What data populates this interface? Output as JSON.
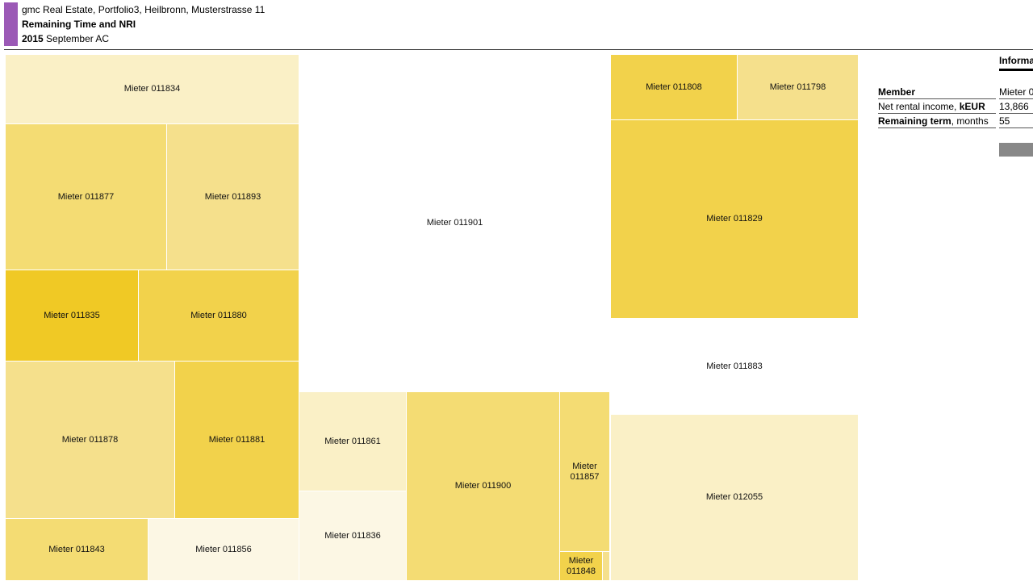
{
  "header": {
    "line1": "gmc Real Estate, Portfolio3, Heilbronn, Musterstrasse 11",
    "line2": "Remaining Time and NRI",
    "year": "2015",
    "period": " September AC"
  },
  "colors": {
    "accent": "#9b59b6",
    "tile_scale": [
      "#fcf7e4",
      "#faf0c6",
      "#f5e08c",
      "#f4dc73",
      "#f2d24b",
      "#f0c925"
    ]
  },
  "chart_data": {
    "type": "treemap",
    "title": "Remaining Time and NRI",
    "tiles": [
      {
        "label": "Mieter 011834",
        "color": "#faf0c6"
      },
      {
        "label": "Mieter 011877",
        "color": "#f4dc73"
      },
      {
        "label": "Mieter 011893",
        "color": "#f5e08c"
      },
      {
        "label": "Mieter 011835",
        "color": "#f0c925"
      },
      {
        "label": "Mieter 011880",
        "color": "#f2d24b"
      },
      {
        "label": "Mieter 011878",
        "color": "#f5e08c"
      },
      {
        "label": "Mieter 011881",
        "color": "#f2d24b"
      },
      {
        "label": "Mieter 011843",
        "color": "#f4dc73"
      },
      {
        "label": "Mieter 011856",
        "color": "#fcf7e4"
      },
      {
        "label": "Mieter 011901",
        "color": "#ffffff"
      },
      {
        "label": "Mieter 011861",
        "color": "#faf0c6"
      },
      {
        "label": "Mieter 011836",
        "color": "#fcf7e4"
      },
      {
        "label": "Mieter 011900",
        "color": "#f4dc73"
      },
      {
        "label": "Mieter 011857",
        "color": "#f4dc73"
      },
      {
        "label": "Mieter 011848",
        "color": "#f2d24b"
      },
      {
        "label": "",
        "color": "#f5e08c"
      },
      {
        "label": "Mieter 011808",
        "color": "#f2d24b"
      },
      {
        "label": "Mieter 011798",
        "color": "#f5e08c"
      },
      {
        "label": "Mieter 011829",
        "color": "#f2d24b"
      },
      {
        "label": "Mieter 011883",
        "color": "#ffffff"
      },
      {
        "label": "Mieter 012055",
        "color": "#faf0c6"
      }
    ]
  },
  "info_panel": {
    "title": "Informa",
    "rows": [
      {
        "label": "Member",
        "value": "Mieter 0"
      },
      {
        "label_plain": "Net rental income, ",
        "label_bold": "kEUR",
        "value": "13,866"
      },
      {
        "label_bold": "Remaining term",
        "label_plain": ", months",
        "value": "55"
      }
    ]
  }
}
